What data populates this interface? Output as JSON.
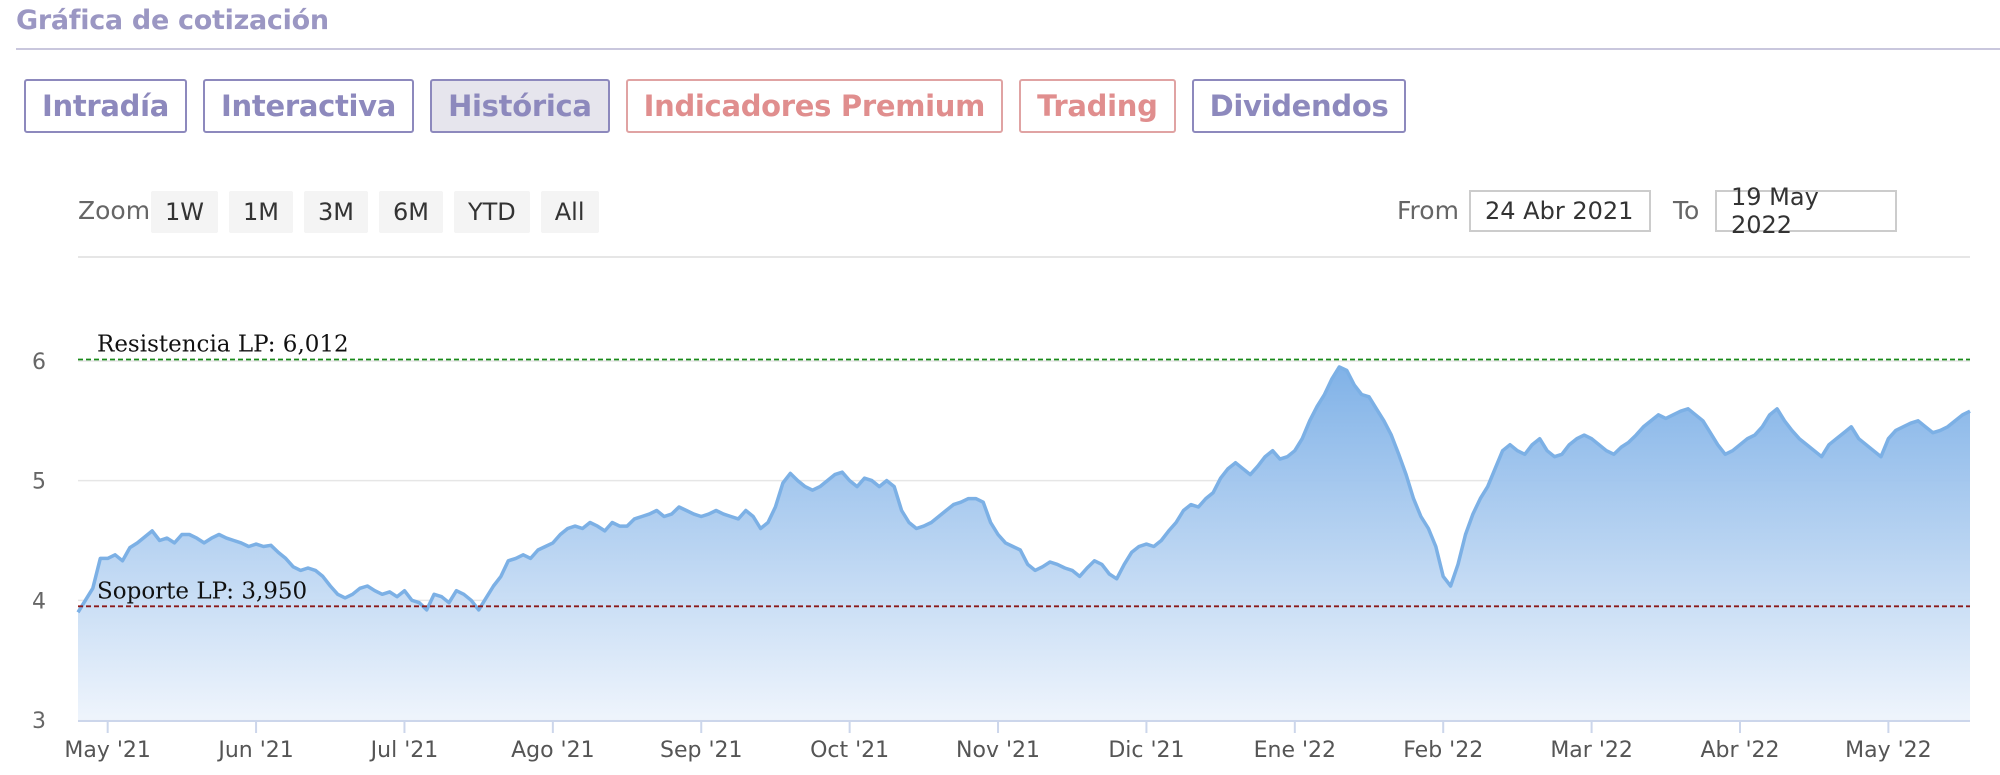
{
  "section": {
    "title": "Gráfica de cotización"
  },
  "tabs": [
    {
      "label": "Intradía",
      "state": "normal"
    },
    {
      "label": "Interactiva",
      "state": "normal"
    },
    {
      "label": "Histórica",
      "state": "active"
    },
    {
      "label": "Indicadores Premium",
      "state": "premium"
    },
    {
      "label": "Trading",
      "state": "premium"
    },
    {
      "label": "Dividendos",
      "state": "normal"
    }
  ],
  "range_selector": {
    "zoom_label": "Zoom",
    "buttons": [
      "1W",
      "1M",
      "3M",
      "6M",
      "YTD",
      "All"
    ],
    "from_label": "From",
    "from_value": "24 Abr 2021",
    "to_label": "To",
    "to_value": "19 May 2022"
  },
  "colors": {
    "accent": "#8d89bd",
    "premium": "#e08e8e",
    "series_line": "#7cb0e5",
    "area_top": "#7aaee6",
    "resistance_line": "#1a8a1a",
    "support_line": "#8b1a1a"
  },
  "chart_data": {
    "type": "area",
    "ylim": [
      3,
      6.2
    ],
    "y_ticks": [
      3,
      4,
      5,
      6
    ],
    "x_ticks": [
      "May '21",
      "Jun '21",
      "Jul '21",
      "Ago '21",
      "Sep '21",
      "Oct '21",
      "Nov '21",
      "Dic '21",
      "Ene '22",
      "Feb '22",
      "Mar '22",
      "Abr '22",
      "May '22"
    ],
    "x_tick_positions": [
      0.5,
      1.5,
      2.5,
      3.5,
      4.5,
      5.5,
      6.5,
      7.5,
      8.5,
      9.5,
      10.5,
      11.5,
      12.5
    ],
    "xlim": [
      0.3,
      13.05
    ],
    "grid": true,
    "series": [
      {
        "points": [
          [
            0.3,
            3.9
          ],
          [
            0.35,
            4.0
          ],
          [
            0.4,
            4.1
          ],
          [
            0.45,
            4.35
          ],
          [
            0.5,
            4.35
          ],
          [
            0.55,
            4.38
          ],
          [
            0.6,
            4.33
          ],
          [
            0.65,
            4.44
          ],
          [
            0.7,
            4.48
          ],
          [
            0.75,
            4.53
          ],
          [
            0.8,
            4.58
          ],
          [
            0.85,
            4.5
          ],
          [
            0.9,
            4.52
          ],
          [
            0.95,
            4.48
          ],
          [
            1.0,
            4.55
          ],
          [
            1.05,
            4.55
          ],
          [
            1.1,
            4.52
          ],
          [
            1.15,
            4.48
          ],
          [
            1.2,
            4.52
          ],
          [
            1.25,
            4.55
          ],
          [
            1.3,
            4.52
          ],
          [
            1.35,
            4.5
          ],
          [
            1.4,
            4.48
          ],
          [
            1.45,
            4.45
          ],
          [
            1.5,
            4.47
          ],
          [
            1.55,
            4.45
          ],
          [
            1.6,
            4.46
          ],
          [
            1.65,
            4.4
          ],
          [
            1.7,
            4.35
          ],
          [
            1.75,
            4.28
          ],
          [
            1.8,
            4.25
          ],
          [
            1.85,
            4.27
          ],
          [
            1.9,
            4.25
          ],
          [
            1.95,
            4.2
          ],
          [
            2.0,
            4.12
          ],
          [
            2.05,
            4.05
          ],
          [
            2.1,
            4.02
          ],
          [
            2.15,
            4.05
          ],
          [
            2.2,
            4.1
          ],
          [
            2.25,
            4.12
          ],
          [
            2.3,
            4.08
          ],
          [
            2.35,
            4.05
          ],
          [
            2.4,
            4.07
          ],
          [
            2.45,
            4.03
          ],
          [
            2.5,
            4.08
          ],
          [
            2.55,
            4.0
          ],
          [
            2.6,
            3.98
          ],
          [
            2.65,
            3.92
          ],
          [
            2.7,
            4.05
          ],
          [
            2.75,
            4.03
          ],
          [
            2.8,
            3.98
          ],
          [
            2.85,
            4.08
          ],
          [
            2.9,
            4.05
          ],
          [
            2.95,
            4.0
          ],
          [
            3.0,
            3.92
          ],
          [
            3.05,
            4.02
          ],
          [
            3.1,
            4.12
          ],
          [
            3.15,
            4.2
          ],
          [
            3.2,
            4.33
          ],
          [
            3.25,
            4.35
          ],
          [
            3.3,
            4.38
          ],
          [
            3.35,
            4.35
          ],
          [
            3.4,
            4.42
          ],
          [
            3.45,
            4.45
          ],
          [
            3.5,
            4.48
          ],
          [
            3.55,
            4.55
          ],
          [
            3.6,
            4.6
          ],
          [
            3.65,
            4.62
          ],
          [
            3.7,
            4.6
          ],
          [
            3.75,
            4.65
          ],
          [
            3.8,
            4.62
          ],
          [
            3.85,
            4.58
          ],
          [
            3.9,
            4.65
          ],
          [
            3.95,
            4.62
          ],
          [
            4.0,
            4.62
          ],
          [
            4.05,
            4.68
          ],
          [
            4.1,
            4.7
          ],
          [
            4.15,
            4.72
          ],
          [
            4.2,
            4.75
          ],
          [
            4.25,
            4.7
          ],
          [
            4.3,
            4.72
          ],
          [
            4.35,
            4.78
          ],
          [
            4.4,
            4.75
          ],
          [
            4.45,
            4.72
          ],
          [
            4.5,
            4.7
          ],
          [
            4.55,
            4.72
          ],
          [
            4.6,
            4.75
          ],
          [
            4.65,
            4.72
          ],
          [
            4.7,
            4.7
          ],
          [
            4.75,
            4.68
          ],
          [
            4.8,
            4.75
          ],
          [
            4.85,
            4.7
          ],
          [
            4.9,
            4.6
          ],
          [
            4.95,
            4.65
          ],
          [
            5.0,
            4.78
          ],
          [
            5.05,
            4.98
          ],
          [
            5.1,
            5.06
          ],
          [
            5.15,
            5.0
          ],
          [
            5.2,
            4.95
          ],
          [
            5.25,
            4.92
          ],
          [
            5.3,
            4.95
          ],
          [
            5.35,
            5.0
          ],
          [
            5.4,
            5.05
          ],
          [
            5.45,
            5.07
          ],
          [
            5.5,
            5.0
          ],
          [
            5.55,
            4.95
          ],
          [
            5.6,
            5.02
          ],
          [
            5.65,
            5.0
          ],
          [
            5.7,
            4.95
          ],
          [
            5.75,
            5.0
          ],
          [
            5.8,
            4.95
          ],
          [
            5.85,
            4.75
          ],
          [
            5.9,
            4.65
          ],
          [
            5.95,
            4.6
          ],
          [
            6.0,
            4.62
          ],
          [
            6.05,
            4.65
          ],
          [
            6.1,
            4.7
          ],
          [
            6.15,
            4.75
          ],
          [
            6.2,
            4.8
          ],
          [
            6.25,
            4.82
          ],
          [
            6.3,
            4.85
          ],
          [
            6.35,
            4.85
          ],
          [
            6.4,
            4.82
          ],
          [
            6.45,
            4.65
          ],
          [
            6.5,
            4.55
          ],
          [
            6.55,
            4.48
          ],
          [
            6.6,
            4.45
          ],
          [
            6.65,
            4.42
          ],
          [
            6.7,
            4.3
          ],
          [
            6.75,
            4.25
          ],
          [
            6.8,
            4.28
          ],
          [
            6.85,
            4.32
          ],
          [
            6.9,
            4.3
          ],
          [
            6.95,
            4.27
          ],
          [
            7.0,
            4.25
          ],
          [
            7.05,
            4.2
          ],
          [
            7.1,
            4.27
          ],
          [
            7.15,
            4.33
          ],
          [
            7.2,
            4.3
          ],
          [
            7.25,
            4.22
          ],
          [
            7.3,
            4.18
          ],
          [
            7.35,
            4.3
          ],
          [
            7.4,
            4.4
          ],
          [
            7.45,
            4.45
          ],
          [
            7.5,
            4.47
          ],
          [
            7.55,
            4.45
          ],
          [
            7.6,
            4.5
          ],
          [
            7.65,
            4.58
          ],
          [
            7.7,
            4.65
          ],
          [
            7.75,
            4.75
          ],
          [
            7.8,
            4.8
          ],
          [
            7.85,
            4.78
          ],
          [
            7.9,
            4.85
          ],
          [
            7.95,
            4.9
          ],
          [
            8.0,
            5.02
          ],
          [
            8.05,
            5.1
          ],
          [
            8.1,
            5.15
          ],
          [
            8.15,
            5.1
          ],
          [
            8.2,
            5.05
          ],
          [
            8.25,
            5.12
          ],
          [
            8.3,
            5.2
          ],
          [
            8.35,
            5.25
          ],
          [
            8.4,
            5.18
          ],
          [
            8.45,
            5.2
          ],
          [
            8.5,
            5.25
          ],
          [
            8.55,
            5.35
          ],
          [
            8.6,
            5.5
          ],
          [
            8.65,
            5.62
          ],
          [
            8.7,
            5.72
          ],
          [
            8.75,
            5.85
          ],
          [
            8.8,
            5.95
          ],
          [
            8.85,
            5.92
          ],
          [
            8.9,
            5.8
          ],
          [
            8.95,
            5.72
          ],
          [
            9.0,
            5.7
          ],
          [
            9.05,
            5.6
          ],
          [
            9.1,
            5.5
          ],
          [
            9.15,
            5.38
          ],
          [
            9.2,
            5.22
          ],
          [
            9.25,
            5.05
          ],
          [
            9.3,
            4.85
          ],
          [
            9.35,
            4.7
          ],
          [
            9.4,
            4.6
          ],
          [
            9.45,
            4.45
          ],
          [
            9.5,
            4.2
          ],
          [
            9.55,
            4.12
          ],
          [
            9.6,
            4.3
          ],
          [
            9.65,
            4.55
          ],
          [
            9.7,
            4.72
          ],
          [
            9.75,
            4.85
          ],
          [
            9.8,
            4.95
          ],
          [
            9.85,
            5.1
          ],
          [
            9.9,
            5.25
          ],
          [
            9.95,
            5.3
          ],
          [
            10.0,
            5.25
          ],
          [
            10.05,
            5.22
          ],
          [
            10.1,
            5.3
          ],
          [
            10.15,
            5.35
          ],
          [
            10.2,
            5.25
          ],
          [
            10.25,
            5.2
          ],
          [
            10.3,
            5.22
          ],
          [
            10.35,
            5.3
          ],
          [
            10.4,
            5.35
          ],
          [
            10.45,
            5.38
          ],
          [
            10.5,
            5.35
          ],
          [
            10.55,
            5.3
          ],
          [
            10.6,
            5.25
          ],
          [
            10.65,
            5.22
          ],
          [
            10.7,
            5.28
          ],
          [
            10.75,
            5.32
          ],
          [
            10.8,
            5.38
          ],
          [
            10.85,
            5.45
          ],
          [
            10.9,
            5.5
          ],
          [
            10.95,
            5.55
          ],
          [
            11.0,
            5.52
          ],
          [
            11.05,
            5.55
          ],
          [
            11.1,
            5.58
          ],
          [
            11.15,
            5.6
          ],
          [
            11.2,
            5.55
          ],
          [
            11.25,
            5.5
          ],
          [
            11.3,
            5.4
          ],
          [
            11.35,
            5.3
          ],
          [
            11.4,
            5.22
          ],
          [
            11.45,
            5.25
          ],
          [
            11.5,
            5.3
          ],
          [
            11.55,
            5.35
          ],
          [
            11.6,
            5.38
          ],
          [
            11.65,
            5.45
          ],
          [
            11.7,
            5.55
          ],
          [
            11.75,
            5.6
          ],
          [
            11.8,
            5.5
          ],
          [
            11.85,
            5.42
          ],
          [
            11.9,
            5.35
          ],
          [
            11.95,
            5.3
          ],
          [
            12.0,
            5.25
          ],
          [
            12.05,
            5.2
          ],
          [
            12.1,
            5.3
          ],
          [
            12.15,
            5.35
          ],
          [
            12.2,
            5.4
          ],
          [
            12.25,
            5.45
          ],
          [
            12.3,
            5.35
          ],
          [
            12.35,
            5.3
          ],
          [
            12.4,
            5.25
          ],
          [
            12.45,
            5.2
          ],
          [
            12.5,
            5.35
          ],
          [
            12.55,
            5.42
          ],
          [
            12.6,
            5.45
          ],
          [
            12.65,
            5.48
          ],
          [
            12.7,
            5.5
          ],
          [
            12.75,
            5.45
          ],
          [
            12.8,
            5.4
          ],
          [
            12.85,
            5.42
          ],
          [
            12.9,
            5.45
          ],
          [
            12.95,
            5.5
          ],
          [
            13.0,
            5.55
          ],
          [
            13.05,
            5.58
          ]
        ]
      }
    ],
    "annotations": [
      {
        "label": "Resistencia LP: 6,012",
        "value": 6.012,
        "role": "resistance"
      },
      {
        "label": "Soporte LP: 3,950",
        "value": 3.95,
        "role": "support"
      }
    ]
  }
}
